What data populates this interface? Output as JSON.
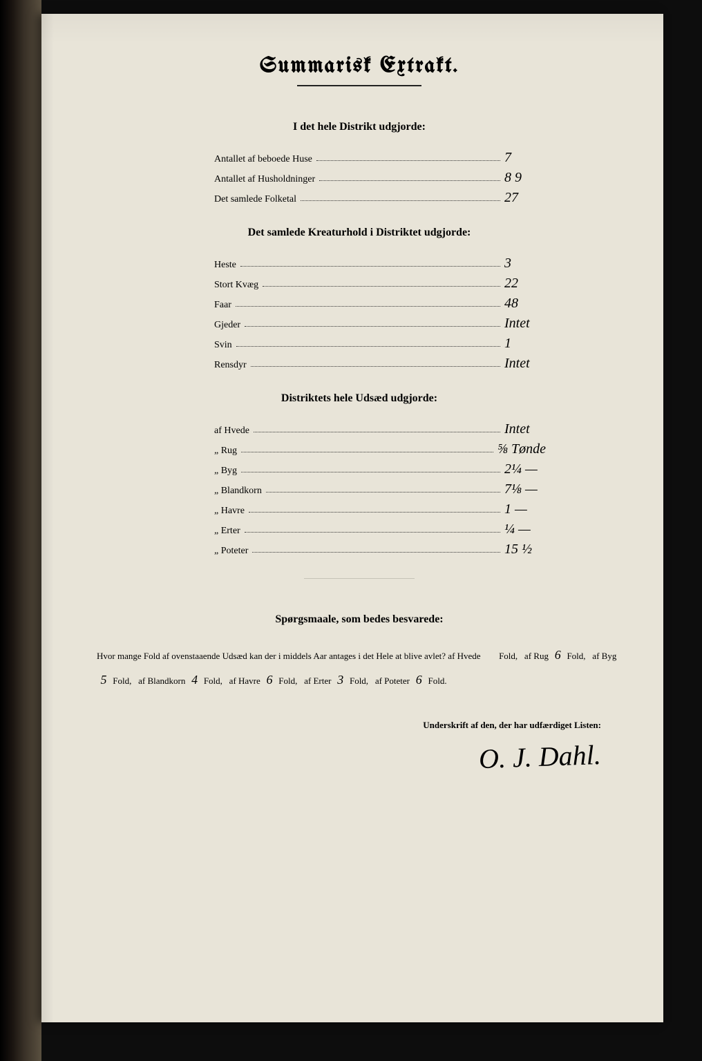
{
  "title": "Summarisk Extrakt.",
  "section1": {
    "heading": "I det hele Distrikt udgjorde:",
    "rows": [
      {
        "label": "Antallet af beboede Huse",
        "value": "7"
      },
      {
        "label": "Antallet af Husholdninger",
        "value": "8  9"
      },
      {
        "label": "Det samlede Folketal",
        "value": "27"
      }
    ]
  },
  "section2": {
    "heading": "Det samlede Kreaturhold i Distriktet udgjorde:",
    "rows": [
      {
        "label": "Heste",
        "value": "3"
      },
      {
        "label": "Stort Kvæg",
        "value": "22"
      },
      {
        "label": "Faar",
        "value": "48"
      },
      {
        "label": "Gjeder",
        "value": "Intet"
      },
      {
        "label": "Svin",
        "value": "1"
      },
      {
        "label": "Rensdyr",
        "value": "Intet"
      }
    ]
  },
  "section3": {
    "heading": "Distriktets hele Udsæd udgjorde:",
    "rows": [
      {
        "label": "af Hvede",
        "value": "Intet"
      },
      {
        "label": "„ Rug",
        "value": "⅝ Tønde"
      },
      {
        "label": "„ Byg",
        "value": "2¼ —"
      },
      {
        "label": "„ Blandkorn",
        "value": "7⅛ —"
      },
      {
        "label": "„ Havre",
        "value": "1 —"
      },
      {
        "label": "„ Erter",
        "value": "¼ —"
      },
      {
        "label": "„ Poteter",
        "value": "15 ½"
      }
    ]
  },
  "question": {
    "heading": "Spørgsmaale, som bedes besvarede:",
    "intro": "Hvor mange Fold af ovenstaaende Udsæd kan der i middels Aar antages i det Hele at blive avlet?",
    "items": [
      {
        "label": "af Hvede",
        "value": "",
        "unit": "Fold,"
      },
      {
        "label": "af Rug",
        "value": "6",
        "unit": "Fold,"
      },
      {
        "label": "af Byg",
        "value": "5",
        "unit": "Fold,"
      },
      {
        "label": "af Blandkorn",
        "value": "4",
        "unit": "Fold,"
      },
      {
        "label": "af Havre",
        "value": "6",
        "unit": "Fold,"
      },
      {
        "label": "af Erter",
        "value": "3",
        "unit": "Fold,"
      },
      {
        "label": "af Poteter",
        "value": "6",
        "unit": "Fold."
      }
    ]
  },
  "signature": {
    "label": "Underskrift af den, der har udfærdiget Listen:",
    "name": "O. J. Dahl."
  },
  "colors": {
    "page_bg": "#e8e4d8",
    "ink": "#1a1a1a",
    "frame": "#0d0d0d"
  }
}
